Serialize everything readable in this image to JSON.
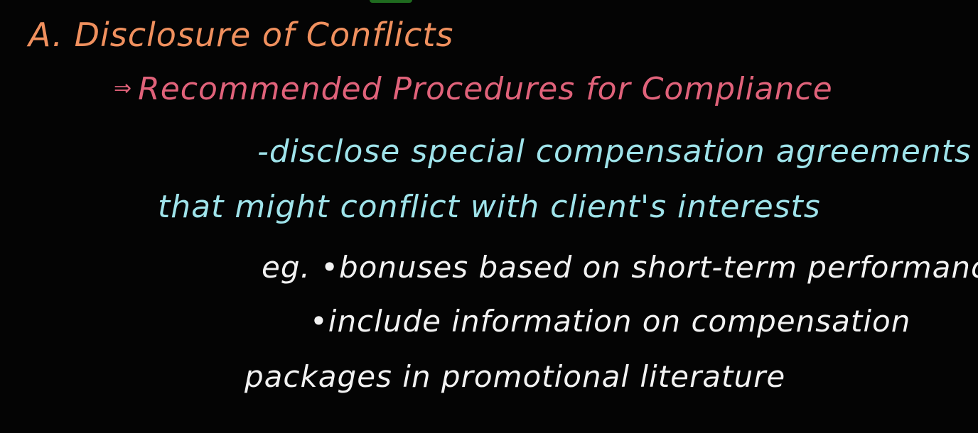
{
  "heading": "A. Disclosure of Conflicts",
  "subheading_arrow": "⇒",
  "subheading": "Recommended Procedures for Compliance",
  "lines": [
    "-disclose special compensation agreements",
    "that might conflict with client's interests",
    "eg. •bonuses based on short-term performance",
    "•include information on compensation",
    "packages in promotional literature"
  ],
  "colors": {
    "background": "#040404",
    "heading": "#f0905e",
    "subheading": "#e0627a",
    "cyan_text": "#9fe3ea",
    "white_text": "#f2f2f2"
  }
}
